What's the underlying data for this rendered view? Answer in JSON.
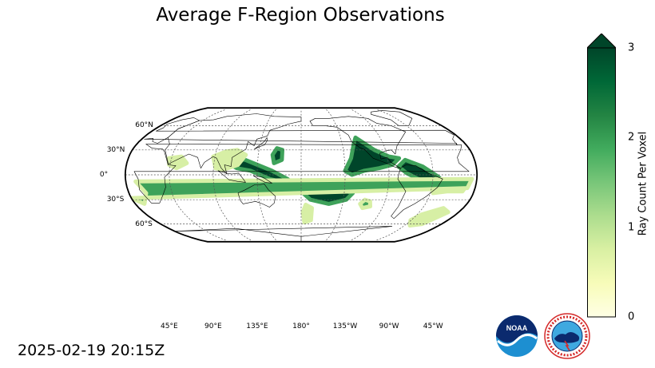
{
  "title": "Average F-Region Observations",
  "timestamp": "2025-02-19 20:15Z",
  "map": {
    "projection": "robinson",
    "center_longitude": 180,
    "colors": {
      "ocean": "#ffffff",
      "coast": "#000000",
      "grid": "#555555",
      "high": "#00452a",
      "mid": "#3ea25a",
      "low": "#d7efa5"
    },
    "lat_labels": [
      {
        "text": "60°N",
        "lat": 60
      },
      {
        "text": "30°N",
        "lat": 30
      },
      {
        "text": "0°",
        "lat": 0
      },
      {
        "text": "30°S",
        "lat": -30
      },
      {
        "text": "60°S",
        "lat": -60
      }
    ],
    "lon_labels": [
      {
        "text": "45°E",
        "lon": 45
      },
      {
        "text": "90°E",
        "lon": 90
      },
      {
        "text": "135°E",
        "lon": 135
      },
      {
        "text": "180°",
        "lon": 180
      },
      {
        "text": "135°W",
        "lon": -135
      },
      {
        "text": "90°W",
        "lon": -90
      },
      {
        "text": "45°W",
        "lon": -45
      }
    ],
    "regions": [
      {
        "name": "north-pacific-east",
        "level": 3
      },
      {
        "name": "central-america",
        "level": 3
      },
      {
        "name": "western-pacific-indonesia",
        "level": 3
      },
      {
        "name": "south-pacific",
        "level": 3
      },
      {
        "name": "south-atlantic",
        "level": 2.5
      },
      {
        "name": "southern-africa",
        "level": 2.5
      },
      {
        "name": "china-south-asia",
        "level": 1.5
      },
      {
        "name": "arabia",
        "level": 1
      },
      {
        "name": "japan-east",
        "level": 3
      },
      {
        "name": "east-australia",
        "level": 1.5
      },
      {
        "name": "south-pacific-patch",
        "level": 2.5
      },
      {
        "name": "southern-ocean-atlantic",
        "level": 0.8
      }
    ]
  },
  "colorbar": {
    "label": "Ray Count Per Voxel",
    "min": 0,
    "max": 3,
    "extend": "max",
    "ticks": [
      {
        "value": 0,
        "label": "0"
      },
      {
        "value": 1,
        "label": "1"
      },
      {
        "value": 2,
        "label": "2"
      },
      {
        "value": 3,
        "label": "3"
      }
    ],
    "gradient": [
      "#ffffe5",
      "#f7fcb9",
      "#d9f0a3",
      "#addd8e",
      "#78c679",
      "#41ab5d",
      "#238443",
      "#006837",
      "#004529"
    ]
  },
  "logos": {
    "noaa_text": "NOAA",
    "nws_text": "NATIONAL WEATHER SERVICE"
  }
}
